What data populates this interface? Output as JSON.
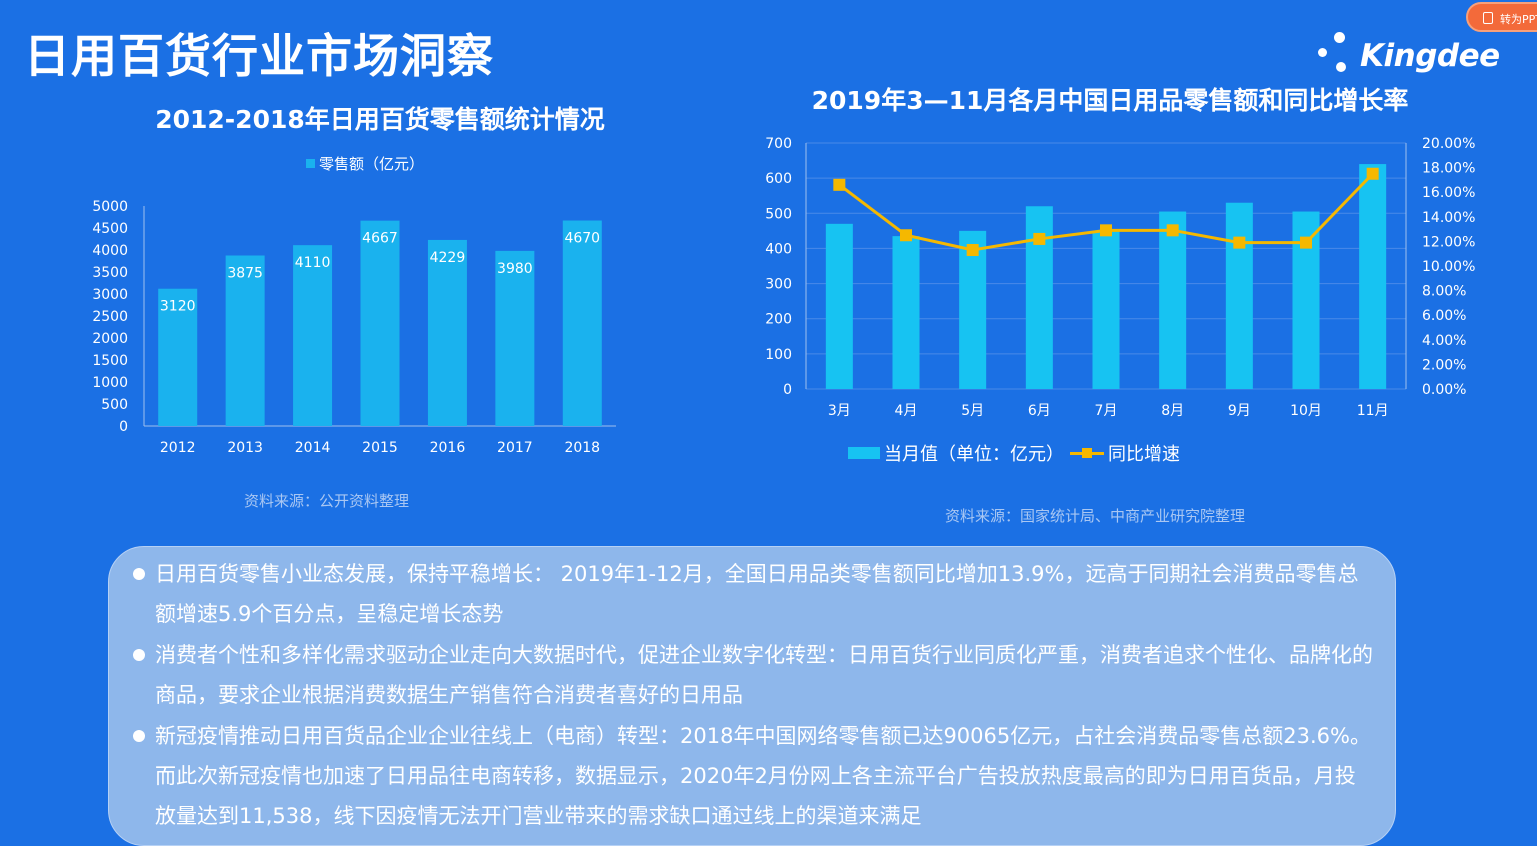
{
  "page": {
    "title": "日用百货行业市场洞察",
    "logo_text": "Kingdee",
    "convert_button": "转为PPT"
  },
  "chart_left": {
    "title": "2012-2018年日用百货零售额统计情况",
    "source": "资料来源：公开资料整理"
  },
  "chart_right": {
    "title": "2019年3—11月各月中国日用品零售额和同比增长率",
    "legend_bar": "当月值（单位：亿元）",
    "legend_line": "同比增速",
    "source": "资料来源：国家统计局、中商产业研究院整理"
  },
  "bullets": [
    "日用百货零售小业态发展，保持平稳增长： 2019年1-12月，全国日用品类零售额同比增加13.9%，远高于同期社会消费品零售总额增速5.9个百分点，呈稳定增长态势",
    "消费者个性和多样化需求驱动企业走向大数据时代，促进企业数字化转型：日用百货行业同质化严重，消费者追求个性化、品牌化的商品，要求企业根据消费数据生产销售符合消费者喜好的日用品",
    "新冠疫情推动日用百货品企业企业往线上（电商）转型：2018年中国网络零售额已达90065亿元，占社会消费品零售总额23.6%。而此次新冠疫情也加速了日用品往电商转移，数据显示，2020年2月份网上各主流平台广告投放热度最高的即为日用百货品，月投放量达到11,538，线下因疫情无法开门营业带来的需求缺口通过线上的渠道来满足"
  ],
  "colors": {
    "background": "#1b70e4",
    "bar_left": "#1ab2ee",
    "bar_right": "#17c3f2",
    "line": "#f5b800"
  },
  "chart_data": [
    {
      "type": "bar",
      "title": "2012-2018年日用百货零售额统计情况",
      "categories": [
        "2012",
        "2013",
        "2014",
        "2015",
        "2016",
        "2017",
        "2018"
      ],
      "series": [
        {
          "name": "零售额（亿元）",
          "values": [
            3120,
            3875,
            4110,
            4667,
            4229,
            3980,
            4670
          ]
        }
      ],
      "ylim": [
        0,
        5000
      ],
      "yticks": [
        0,
        500,
        1000,
        1500,
        2000,
        2500,
        3000,
        3500,
        4000,
        4500,
        5000
      ],
      "legend_position": "top",
      "grid": false,
      "data_labels": true
    },
    {
      "type": "bar",
      "title": "2019年3—11月各月中国日用品零售额和同比增长率",
      "categories": [
        "3月",
        "4月",
        "5月",
        "6月",
        "7月",
        "8月",
        "9月",
        "10月",
        "11月"
      ],
      "series": [
        {
          "name": "当月值（单位：亿元）",
          "type": "bar",
          "axis": "left",
          "values": [
            470,
            435,
            450,
            520,
            450,
            505,
            530,
            505,
            640
          ]
        },
        {
          "name": "同比增速",
          "type": "line",
          "axis": "right",
          "values": [
            16.6,
            12.5,
            11.3,
            12.2,
            12.9,
            12.9,
            11.9,
            11.9,
            17.5
          ]
        }
      ],
      "ylim": [
        0,
        700
      ],
      "yticks": [
        0,
        100,
        200,
        300,
        400,
        500,
        600,
        700
      ],
      "y2lim": [
        0,
        20
      ],
      "y2ticks": [
        "0.00%",
        "2.00%",
        "4.00%",
        "6.00%",
        "8.00%",
        "10.00%",
        "12.00%",
        "14.00%",
        "16.00%",
        "18.00%",
        "20.00%"
      ],
      "legend_position": "bottom",
      "grid": true
    }
  ]
}
